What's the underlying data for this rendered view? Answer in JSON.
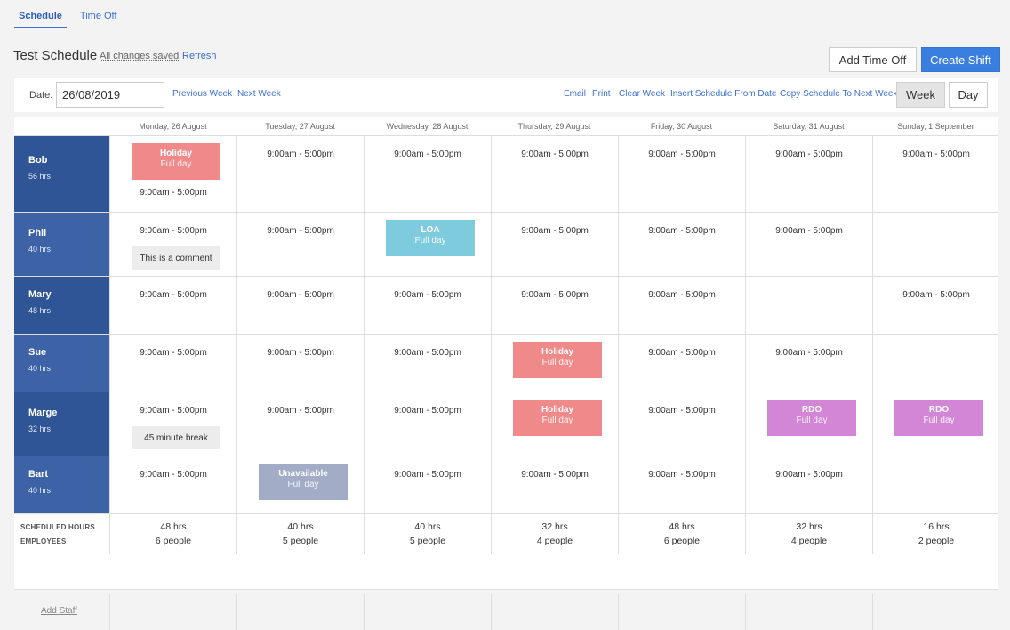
{
  "tabs": [
    {
      "label": "Schedule",
      "active": true
    },
    {
      "label": "Time Off",
      "active": false
    }
  ],
  "header": {
    "title": "Test Schedule",
    "saved_status": "All changes saved",
    "refresh_label": "Refresh",
    "add_time_off_label": "Add Time Off",
    "create_shift_label": "Create Shift"
  },
  "toolbar": {
    "date_label": "Date:",
    "date_value": "26/08/2019",
    "prev_week": "Previous Week",
    "next_week": "Next Week",
    "email": "Email",
    "print": "Print",
    "clear_week": "Clear Week",
    "insert_schedule": "Insert Schedule From Date",
    "copy_schedule": "Copy Schedule To Next Week",
    "view_week": "Week",
    "view_day": "Day",
    "selected_view": "Week"
  },
  "days": [
    "Monday, 26 August",
    "Tuesday, 27 August",
    "Wednesday, 28 August",
    "Thursday, 29 August",
    "Friday, 30 August",
    "Saturday, 31 August",
    "Sunday, 1 September"
  ],
  "colors": {
    "accent": "#3a7fe0",
    "employee_dark": "#2f5597",
    "employee_light": "#3d62a6",
    "holiday": "#f08a8a",
    "loa": "#7ecbdd",
    "rdo": "#d486d6",
    "unavailable": "#a2acc6"
  },
  "employees": [
    {
      "name": "Bob",
      "hours": "56 hrs",
      "cells": [
        {
          "block": {
            "title": "Holiday",
            "sub": "Full day",
            "kind": "holiday"
          },
          "shift": "9:00am - 5:00pm"
        },
        {
          "shift": "9:00am - 5:00pm"
        },
        {
          "shift": "9:00am - 5:00pm"
        },
        {
          "shift": "9:00am - 5:00pm"
        },
        {
          "shift": "9:00am - 5:00pm"
        },
        {
          "shift": "9:00am - 5:00pm"
        },
        {
          "shift": "9:00am - 5:00pm"
        }
      ]
    },
    {
      "name": "Phil",
      "hours": "40 hrs",
      "cells": [
        {
          "shift": "9:00am - 5:00pm",
          "note": "This is a comment"
        },
        {
          "shift": "9:00am - 5:00pm"
        },
        {
          "block": {
            "title": "LOA",
            "sub": "Full day",
            "kind": "loa"
          }
        },
        {
          "shift": "9:00am - 5:00pm"
        },
        {
          "shift": "9:00am - 5:00pm"
        },
        {
          "shift": "9:00am - 5:00pm"
        },
        {}
      ]
    },
    {
      "name": "Mary",
      "hours": "48 hrs",
      "cells": [
        {
          "shift": "9:00am - 5:00pm"
        },
        {
          "shift": "9:00am - 5:00pm"
        },
        {
          "shift": "9:00am - 5:00pm"
        },
        {
          "shift": "9:00am - 5:00pm"
        },
        {
          "shift": "9:00am - 5:00pm"
        },
        {},
        {
          "shift": "9:00am - 5:00pm"
        }
      ]
    },
    {
      "name": "Sue",
      "hours": "40 hrs",
      "cells": [
        {
          "shift": "9:00am - 5:00pm"
        },
        {
          "shift": "9:00am - 5:00pm"
        },
        {
          "shift": "9:00am - 5:00pm"
        },
        {
          "block": {
            "title": "Holiday",
            "sub": "Full day",
            "kind": "holiday"
          }
        },
        {
          "shift": "9:00am - 5:00pm"
        },
        {
          "shift": "9:00am - 5:00pm"
        },
        {}
      ]
    },
    {
      "name": "Marge",
      "hours": "32 hrs",
      "cells": [
        {
          "shift": "9:00am - 5:00pm",
          "note": "45 minute break"
        },
        {
          "shift": "9:00am - 5:00pm"
        },
        {
          "shift": "9:00am - 5:00pm"
        },
        {
          "block": {
            "title": "Holiday",
            "sub": "Full day",
            "kind": "holiday"
          }
        },
        {
          "shift": "9:00am - 5:00pm"
        },
        {
          "block": {
            "title": "RDO",
            "sub": "Full day",
            "kind": "rdo"
          }
        },
        {
          "block": {
            "title": "RDO",
            "sub": "Full day",
            "kind": "rdo"
          }
        }
      ]
    },
    {
      "name": "Bart",
      "hours": "40 hrs",
      "cells": [
        {
          "shift": "9:00am - 5:00pm"
        },
        {
          "block": {
            "title": "Unavailable",
            "sub": "Full day",
            "kind": "unavailable"
          }
        },
        {
          "shift": "9:00am - 5:00pm"
        },
        {
          "shift": "9:00am - 5:00pm"
        },
        {
          "shift": "9:00am - 5:00pm"
        },
        {
          "shift": "9:00am - 5:00pm"
        },
        {}
      ]
    }
  ],
  "totals": {
    "label_hours": "SCHEDULED HOURS",
    "label_employees": "EMPLOYEES",
    "hours": [
      "48 hrs",
      "40 hrs",
      "40 hrs",
      "32 hrs",
      "48 hrs",
      "32 hrs",
      "16 hrs"
    ],
    "people": [
      "6 people",
      "5 people",
      "5 people",
      "4 people",
      "6 people",
      "4 people",
      "2 people"
    ]
  },
  "add_staff_label": "Add Staff"
}
